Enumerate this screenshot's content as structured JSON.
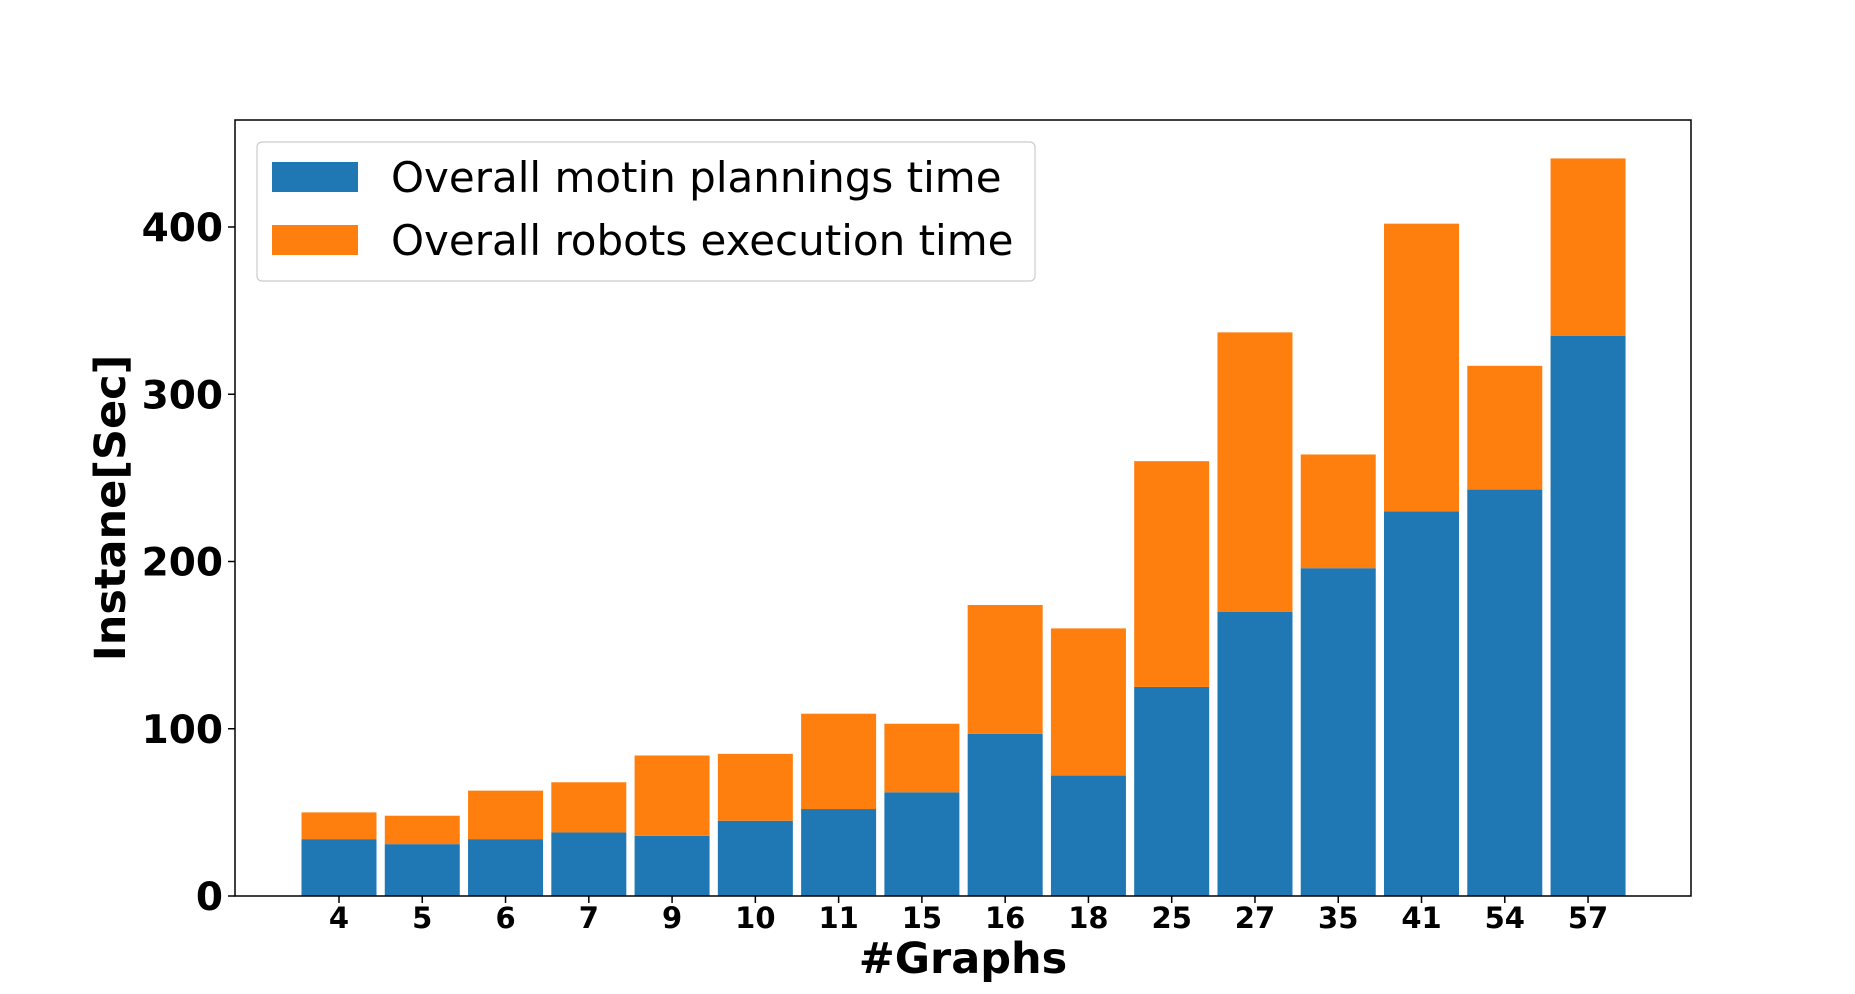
{
  "chart_data": {
    "type": "bar",
    "stacked": true,
    "title": "",
    "xlabel": "#Graphs",
    "ylabel": "Instane[Sec]",
    "categories": [
      "4",
      "5",
      "6",
      "7",
      "9",
      "10",
      "11",
      "15",
      "16",
      "18",
      "25",
      "27",
      "35",
      "41",
      "54",
      "57"
    ],
    "series": [
      {
        "name": "Overall motin plannings time",
        "color": "#1f77b4",
        "values": [
          34,
          31,
          34,
          38,
          36,
          45,
          52,
          62,
          97,
          72,
          125,
          170,
          196,
          230,
          243,
          335
        ]
      },
      {
        "name": "Overall robots execution time",
        "color": "#ff7f0e",
        "values": [
          16,
          17,
          29,
          30,
          48,
          40,
          57,
          41,
          77,
          88,
          135,
          167,
          68,
          172,
          74,
          106
        ]
      }
    ],
    "ylim": [
      0,
      450
    ],
    "yticks": [
      0,
      100,
      200,
      300,
      400
    ],
    "grid": false,
    "legend_position": "top-left"
  }
}
